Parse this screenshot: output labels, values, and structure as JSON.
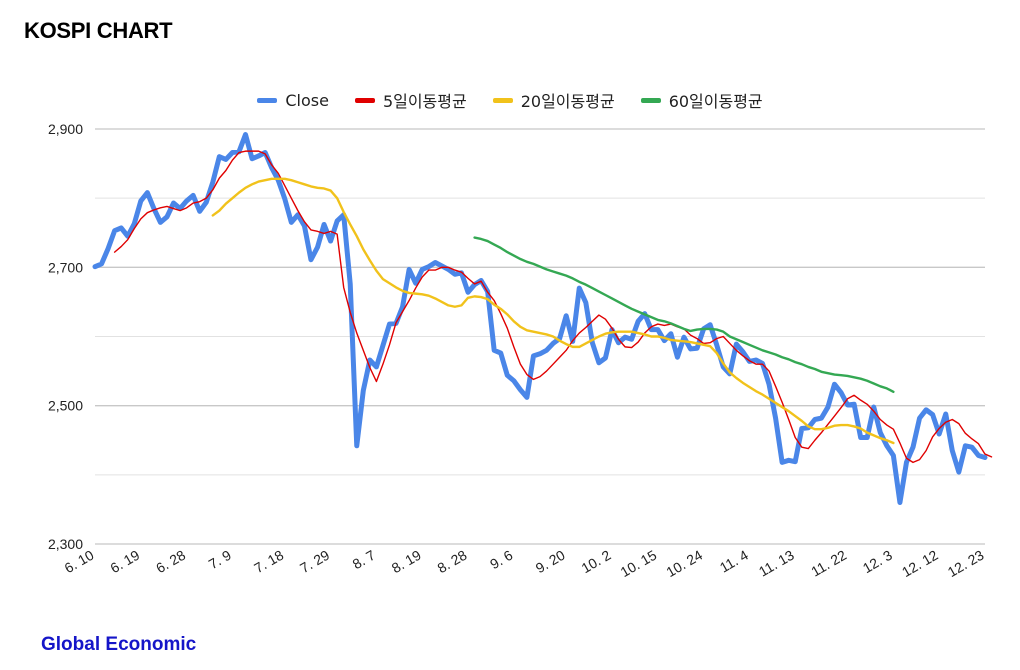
{
  "title": "KOSPI CHART",
  "footer": "Global Economic",
  "chart_data": {
    "type": "line",
    "title": "KOSPI CHART",
    "xlabel": "",
    "ylabel": "",
    "ylim": [
      2300,
      2900
    ],
    "y_ticks": [
      2300,
      2500,
      2700,
      2900
    ],
    "y_tick_labels": [
      "2,300",
      "2,500",
      "2,700",
      "2,900"
    ],
    "grid": true,
    "legend_position": "top-center",
    "x_tick_labels": [
      "6. 10",
      "6. 19",
      "6. 28",
      "7. 9",
      "7. 18",
      "7. 29",
      "8. 7",
      "8. 19",
      "8. 28",
      "9. 6",
      "9. 20",
      "10. 2",
      "10. 15",
      "10. 24",
      "11. 4",
      "11. 13",
      "11. 22",
      "12. 3",
      "12. 12",
      "12. 23"
    ],
    "series": [
      {
        "name": "Close",
        "color": "#4a86e8",
        "values": [
          2701,
          2705,
          2727,
          2753,
          2757,
          2745,
          2763,
          2796,
          2808,
          2785,
          2765,
          2773,
          2793,
          2785,
          2796,
          2804,
          2781,
          2794,
          2823,
          2860,
          2856,
          2866,
          2867,
          2892,
          2857,
          2861,
          2866,
          2844,
          2826,
          2799,
          2765,
          2776,
          2760,
          2711,
          2729,
          2762,
          2738,
          2767,
          2776,
          2676,
          2442,
          2522,
          2566,
          2556,
          2587,
          2618,
          2619,
          2643,
          2697,
          2677,
          2697,
          2701,
          2707,
          2702,
          2697,
          2690,
          2692,
          2664,
          2675,
          2681,
          2665,
          2580,
          2576,
          2544,
          2536,
          2523,
          2512,
          2572,
          2575,
          2580,
          2590,
          2597,
          2630,
          2593,
          2670,
          2649,
          2591,
          2562,
          2569,
          2610,
          2591,
          2599,
          2596,
          2622,
          2633,
          2610,
          2610,
          2594,
          2604,
          2570,
          2599,
          2582,
          2583,
          2611,
          2617,
          2588,
          2556,
          2546,
          2589,
          2578,
          2564,
          2566,
          2561,
          2531,
          2482,
          2418,
          2421,
          2419,
          2467,
          2468,
          2480,
          2482,
          2498,
          2531,
          2519,
          2501,
          2502,
          2454,
          2454,
          2498,
          2461,
          2442,
          2428,
          2360,
          2418,
          2440,
          2482,
          2494,
          2487,
          2459,
          2488,
          2435,
          2404,
          2442,
          2440,
          2428,
          2425
        ]
      },
      {
        "name": "5일이동평균",
        "color": "#e00000",
        "start_index": 3,
        "values": [
          2722,
          2730,
          2740,
          2756,
          2770,
          2779,
          2783,
          2786,
          2788,
          2785,
          2782,
          2786,
          2793,
          2795,
          2800,
          2812,
          2829,
          2840,
          2855,
          2866,
          2868,
          2868,
          2868,
          2864,
          2848,
          2836,
          2818,
          2800,
          2782,
          2766,
          2754,
          2752,
          2749,
          2752,
          2748,
          2671,
          2635,
          2605,
          2580,
          2555,
          2535,
          2560,
          2588,
          2620,
          2636,
          2652,
          2670,
          2686,
          2696,
          2696,
          2700,
          2700,
          2696,
          2693,
          2684,
          2676,
          2680,
          2664,
          2652,
          2633,
          2612,
          2585,
          2560,
          2545,
          2538,
          2542,
          2550,
          2560,
          2570,
          2580,
          2594,
          2605,
          2613,
          2622,
          2631,
          2625,
          2612,
          2596,
          2585,
          2584,
          2592,
          2605,
          2614,
          2618,
          2616,
          2618,
          2614,
          2611,
          2602,
          2597,
          2590,
          2591,
          2597,
          2600,
          2590,
          2580,
          2572,
          2565,
          2560,
          2560,
          2550,
          2528,
          2505,
          2480,
          2454,
          2440,
          2438,
          2450,
          2461,
          2473,
          2485,
          2497,
          2510,
          2515,
          2508,
          2502,
          2492,
          2480,
          2472,
          2466,
          2446,
          2424,
          2418,
          2422,
          2435,
          2455,
          2467,
          2476,
          2480,
          2474,
          2460,
          2452,
          2445,
          2430,
          2426
        ]
      },
      {
        "name": "20일이동평균",
        "color": "#f1c21b",
        "start_index": 18,
        "values": [
          2775,
          2782,
          2792,
          2800,
          2808,
          2815,
          2820,
          2824,
          2826,
          2828,
          2828,
          2828,
          2826,
          2823,
          2820,
          2817,
          2815,
          2814,
          2811,
          2800,
          2780,
          2762,
          2745,
          2726,
          2710,
          2695,
          2683,
          2677,
          2671,
          2666,
          2663,
          2662,
          2661,
          2659,
          2655,
          2650,
          2645,
          2643,
          2645,
          2656,
          2658,
          2657,
          2654,
          2646,
          2640,
          2632,
          2622,
          2614,
          2609,
          2607,
          2605,
          2603,
          2600,
          2594,
          2589,
          2585,
          2585,
          2590,
          2595,
          2600,
          2604,
          2606,
          2607,
          2607,
          2607,
          2605,
          2603,
          2600,
          2600,
          2598,
          2595,
          2594,
          2593,
          2592,
          2590,
          2588,
          2586,
          2576,
          2561,
          2548,
          2540,
          2533,
          2527,
          2521,
          2516,
          2510,
          2504,
          2498,
          2492,
          2485,
          2478,
          2470,
          2466,
          2466,
          2468,
          2471,
          2472,
          2472,
          2470,
          2467,
          2461,
          2457,
          2453,
          2450,
          2446
        ]
      },
      {
        "name": "60일이동평균",
        "color": "#34a853",
        "start_index": 58,
        "values": [
          2743,
          2741,
          2738,
          2733,
          2728,
          2722,
          2717,
          2712,
          2708,
          2705,
          2701,
          2697,
          2694,
          2691,
          2688,
          2684,
          2679,
          2675,
          2670,
          2665,
          2660,
          2655,
          2650,
          2645,
          2640,
          2636,
          2632,
          2628,
          2624,
          2622,
          2619,
          2615,
          2611,
          2608,
          2610,
          2611,
          2611,
          2610,
          2607,
          2600,
          2596,
          2592,
          2588,
          2584,
          2580,
          2577,
          2574,
          2570,
          2567,
          2563,
          2560,
          2556,
          2553,
          2549,
          2547,
          2545,
          2544,
          2543,
          2541,
          2539,
          2536,
          2532,
          2528,
          2525,
          2520
        ]
      }
    ]
  }
}
